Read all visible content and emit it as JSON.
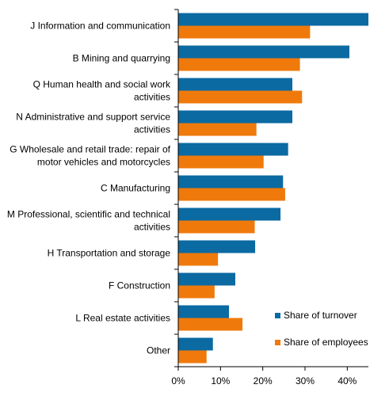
{
  "chart_data": {
    "type": "bar",
    "orientation": "horizontal",
    "title": "",
    "xlabel": "",
    "ylabel": "",
    "xlim": [
      0,
      45
    ],
    "x_ticks": [
      0,
      10,
      20,
      30,
      40
    ],
    "x_tick_labels": [
      "0%",
      "10%",
      "20%",
      "30%",
      "40%"
    ],
    "grid": false,
    "legend_position": "bottom-right",
    "categories": [
      [
        "J Information and communication"
      ],
      [
        "B Mining and quarrying"
      ],
      [
        "Q Human health and social work",
        "activities"
      ],
      [
        "N Administrative and support service",
        "activities"
      ],
      [
        "G Wholesale and retail trade: repair of",
        "motor vehicles and motorcycles"
      ],
      [
        "C Manufacturing"
      ],
      [
        "M Professional, scientific and technical",
        "activities"
      ],
      [
        "H Transportation and storage"
      ],
      [
        "F Construction"
      ],
      [
        "L Real estate activities"
      ],
      [
        "Other"
      ]
    ],
    "series": [
      {
        "name": "Share of turnover",
        "color": "#0b6aa2",
        "values": [
          45.0,
          40.5,
          27.0,
          27.0,
          26.0,
          24.8,
          24.2,
          18.2,
          13.5,
          12.0,
          8.2
        ]
      },
      {
        "name": "Share of employees",
        "color": "#ef7a0b",
        "values": [
          31.2,
          28.8,
          29.3,
          18.5,
          20.2,
          25.3,
          18.1,
          9.4,
          8.6,
          15.2,
          6.7
        ]
      }
    ]
  }
}
